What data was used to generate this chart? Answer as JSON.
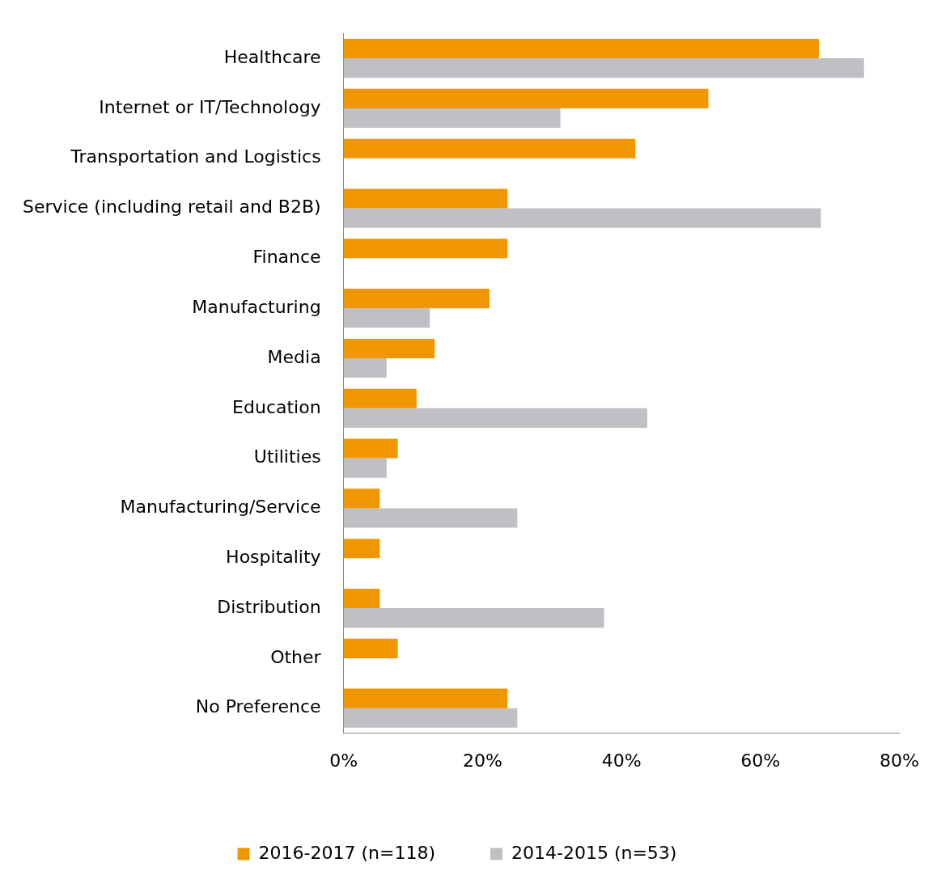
{
  "chart_data": {
    "type": "bar",
    "orientation": "horizontal",
    "categories": [
      "Healthcare",
      "Internet or IT/Technology",
      "Transportation and Logistics",
      "Service (including retail and B2B)",
      "Finance",
      "Manufacturing",
      "Media",
      "Education",
      "Utilities",
      "Manufacturing/Service",
      "Hospitality",
      "Distribution",
      "Other",
      "No Preference"
    ],
    "series": [
      {
        "name": "2016-2017 (n=118)",
        "color": "#f09600",
        "values": [
          68.4,
          52.5,
          42.0,
          23.6,
          23.6,
          21.0,
          13.1,
          10.5,
          7.8,
          5.2,
          5.2,
          5.2,
          7.8,
          23.6
        ]
      },
      {
        "name": "2014-2015 (n=53)",
        "color": "#c0c0c4",
        "values": [
          74.9,
          31.2,
          null,
          68.7,
          null,
          12.4,
          6.2,
          43.7,
          6.2,
          25.0,
          null,
          37.5,
          null,
          25.0
        ]
      }
    ],
    "xlim": [
      0,
      80
    ],
    "xticks": [
      {
        "value": 0,
        "label": "0%"
      },
      {
        "value": 20,
        "label": "20%"
      },
      {
        "value": 40,
        "label": "40%"
      },
      {
        "value": 60,
        "label": "60%"
      },
      {
        "value": 80,
        "label": "80%"
      }
    ],
    "grid": false,
    "legend": "bottom"
  }
}
